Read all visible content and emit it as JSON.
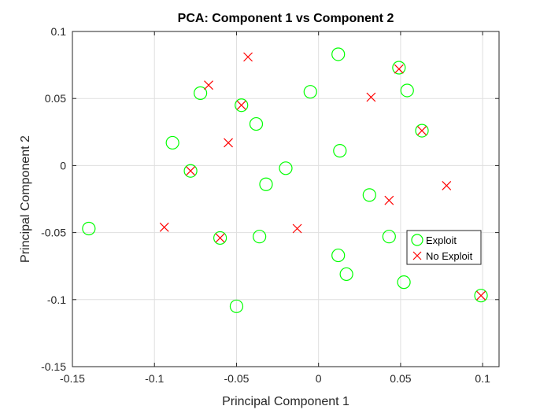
{
  "chart_data": {
    "type": "scatter",
    "title": "PCA: Component 1 vs Component 2",
    "xlabel": "Principal Component 1",
    "ylabel": "Principal Component 2",
    "xlim": [
      -0.15,
      0.11
    ],
    "ylim": [
      -0.15,
      0.1
    ],
    "xticks": [
      -0.15,
      -0.1,
      -0.05,
      0,
      0.05,
      0.1
    ],
    "xtick_labels": [
      "-0.15",
      "-0.1",
      "-0.05",
      "0",
      "0.05",
      "0.1"
    ],
    "yticks": [
      -0.15,
      -0.1,
      -0.05,
      0,
      0.05,
      0.1
    ],
    "ytick_labels": [
      "-0.15",
      "-0.1",
      "-0.05",
      "0",
      "0.05",
      "0.1"
    ],
    "grid": true,
    "legend_position": "inside-right",
    "series": [
      {
        "name": "Exploit",
        "marker": "circle",
        "color": "#00ff00",
        "points": [
          [
            -0.14,
            -0.047
          ],
          [
            -0.089,
            0.017
          ],
          [
            -0.078,
            -0.004
          ],
          [
            -0.072,
            0.054
          ],
          [
            -0.06,
            -0.054
          ],
          [
            -0.05,
            -0.105
          ],
          [
            -0.047,
            0.045
          ],
          [
            -0.038,
            0.031
          ],
          [
            -0.036,
            -0.053
          ],
          [
            -0.032,
            -0.014
          ],
          [
            -0.02,
            -0.002
          ],
          [
            -0.005,
            0.055
          ],
          [
            0.012,
            0.083
          ],
          [
            0.012,
            -0.067
          ],
          [
            0.013,
            0.011
          ],
          [
            0.017,
            -0.081
          ],
          [
            0.031,
            -0.022
          ],
          [
            0.043,
            -0.053
          ],
          [
            0.049,
            0.073
          ],
          [
            0.052,
            -0.087
          ],
          [
            0.054,
            0.056
          ],
          [
            0.063,
            0.026
          ],
          [
            0.099,
            -0.097
          ]
        ]
      },
      {
        "name": "No Exploit",
        "marker": "x",
        "color": "#ff0000",
        "points": [
          [
            -0.094,
            -0.046
          ],
          [
            -0.078,
            -0.004
          ],
          [
            -0.067,
            0.06
          ],
          [
            -0.06,
            -0.054
          ],
          [
            -0.055,
            0.017
          ],
          [
            -0.047,
            0.045
          ],
          [
            -0.043,
            0.081
          ],
          [
            -0.013,
            -0.047
          ],
          [
            0.032,
            0.051
          ],
          [
            0.043,
            -0.026
          ],
          [
            0.049,
            0.072
          ],
          [
            0.063,
            0.026
          ],
          [
            0.078,
            -0.015
          ],
          [
            0.099,
            -0.097
          ]
        ]
      }
    ]
  }
}
